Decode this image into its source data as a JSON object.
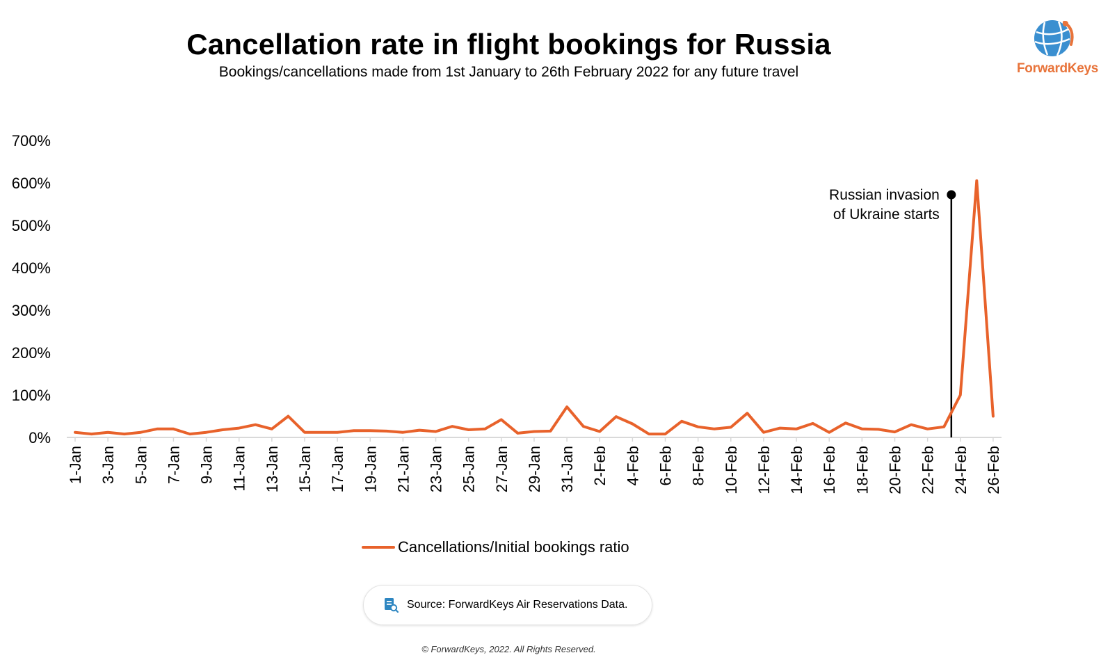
{
  "header": {
    "title": "Cancellation rate in flight bookings for Russia",
    "subtitle": "Bookings/cancellations made from 1st January to 26th February 2022 for any future travel"
  },
  "logo": {
    "text": "ForwardKeys",
    "globe_color": "#3a8fd0",
    "text_color": "#e8743b"
  },
  "colors": {
    "series": "#e8622b",
    "axis": "#d9d9d9",
    "annotation": "#000000"
  },
  "chart_data": {
    "type": "line",
    "title": "Cancellation rate in flight bookings for Russia",
    "subtitle": "Bookings/cancellations made from 1st January to 26th February 2022 for any future travel",
    "xlabel": "",
    "ylabel": "",
    "ylim": [
      0,
      700
    ],
    "y_ticks": [
      "0%",
      "100%",
      "200%",
      "300%",
      "400%",
      "500%",
      "600%",
      "700%"
    ],
    "y_tick_values": [
      0,
      100,
      200,
      300,
      400,
      500,
      600,
      700
    ],
    "x_tick_labels": [
      "1-Jan",
      "3-Jan",
      "5-Jan",
      "7-Jan",
      "9-Jan",
      "11-Jan",
      "13-Jan",
      "15-Jan",
      "17-Jan",
      "19-Jan",
      "21-Jan",
      "23-Jan",
      "25-Jan",
      "27-Jan",
      "29-Jan",
      "31-Jan",
      "2-Feb",
      "4-Feb",
      "6-Feb",
      "8-Feb",
      "10-Feb",
      "12-Feb",
      "14-Feb",
      "16-Feb",
      "18-Feb",
      "20-Feb",
      "22-Feb",
      "24-Feb",
      "26-Feb"
    ],
    "grid": false,
    "legend_position": "bottom-center",
    "x": [
      "1-Jan",
      "2-Jan",
      "3-Jan",
      "4-Jan",
      "5-Jan",
      "6-Jan",
      "7-Jan",
      "8-Jan",
      "9-Jan",
      "10-Jan",
      "11-Jan",
      "12-Jan",
      "13-Jan",
      "14-Jan",
      "15-Jan",
      "16-Jan",
      "17-Jan",
      "18-Jan",
      "19-Jan",
      "20-Jan",
      "21-Jan",
      "22-Jan",
      "23-Jan",
      "24-Jan",
      "25-Jan",
      "26-Jan",
      "27-Jan",
      "28-Jan",
      "29-Jan",
      "30-Jan",
      "31-Jan",
      "1-Feb",
      "2-Feb",
      "3-Feb",
      "4-Feb",
      "5-Feb",
      "6-Feb",
      "7-Feb",
      "8-Feb",
      "9-Feb",
      "10-Feb",
      "11-Feb",
      "12-Feb",
      "13-Feb",
      "14-Feb",
      "15-Feb",
      "16-Feb",
      "17-Feb",
      "18-Feb",
      "19-Feb",
      "20-Feb",
      "21-Feb",
      "22-Feb",
      "23-Feb",
      "24-Feb",
      "25-Feb",
      "26-Feb"
    ],
    "series": [
      {
        "name": "Cancellations/Initial bookings ratio",
        "values": [
          12,
          8,
          12,
          8,
          12,
          20,
          20,
          8,
          12,
          18,
          22,
          30,
          20,
          50,
          12,
          12,
          12,
          16,
          16,
          15,
          12,
          17,
          14,
          26,
          18,
          20,
          42,
          10,
          14,
          15,
          72,
          26,
          14,
          49,
          32,
          8,
          8,
          38,
          25,
          20,
          24,
          57,
          12,
          22,
          20,
          33,
          12,
          34,
          20,
          19,
          13,
          30,
          20,
          25,
          100,
          605,
          50
        ]
      }
    ],
    "annotation": {
      "text_lines": [
        "Russian invasion",
        "of Ukraine starts"
      ],
      "x": "24-Feb"
    }
  },
  "legend": {
    "label": "Cancellations/Initial bookings ratio"
  },
  "footer": {
    "source": "Source: ForwardKeys Air Reservations Data.",
    "copyright": "© ForwardKeys, 2022. All Rights Reserved."
  }
}
